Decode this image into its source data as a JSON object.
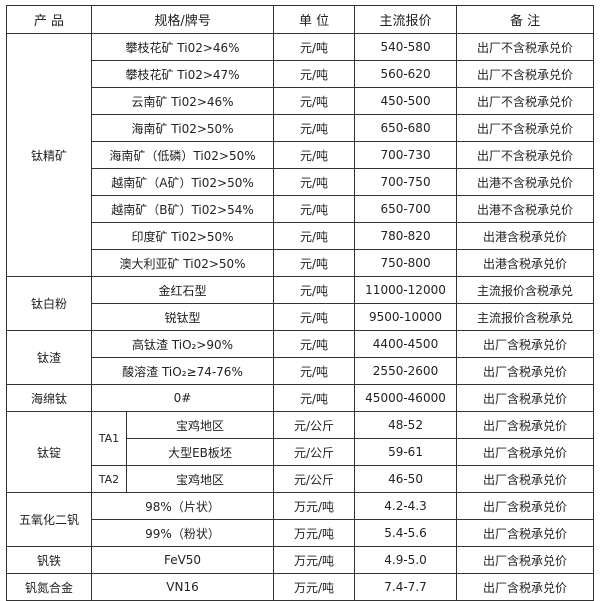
{
  "header": {
    "product": "产 品",
    "spec": "规格/牌号",
    "unit": "单 位",
    "price": "主流报价",
    "note": "备 注"
  },
  "titanium_concentrate": {
    "name": "钛精矿",
    "rows": [
      {
        "spec": "攀枝花矿 Ti02>46%",
        "unit": "元/吨",
        "price": "540-580",
        "note": "出厂不含税承兑价"
      },
      {
        "spec": "攀枝花矿 Ti02>47%",
        "unit": "元/吨",
        "price": "560-620",
        "note": "出厂不含税承兑价"
      },
      {
        "spec": "云南矿 Ti02>46%",
        "unit": "元/吨",
        "price": "450-500",
        "note": "出厂不含税承兑价"
      },
      {
        "spec": "海南矿 Ti02>50%",
        "unit": "元/吨",
        "price": "650-680",
        "note": "出厂不含税承兑价"
      },
      {
        "spec": "海南矿（低磷）Ti02>50%",
        "unit": "元/吨",
        "price": "700-730",
        "note": "出厂不含税承兑价"
      },
      {
        "spec": "越南矿（A矿）Ti02>50%",
        "unit": "元/吨",
        "price": "700-750",
        "note": "出港不含税承兑价"
      },
      {
        "spec": "越南矿（B矿）Ti02>54%",
        "unit": "元/吨",
        "price": "650-700",
        "note": "出港不含税承兑价"
      },
      {
        "spec": "印度矿 Ti02>50%",
        "unit": "元/吨",
        "price": "780-820",
        "note": "出港含税承兑价"
      },
      {
        "spec": "澳大利亚矿 Ti02>50%",
        "unit": "元/吨",
        "price": "750-800",
        "note": "出港含税承兑价"
      }
    ]
  },
  "titanium_dioxide": {
    "name": "钛白粉",
    "rows": [
      {
        "spec": "金红石型",
        "unit": "元/吨",
        "price": "11000-12000",
        "note": "主流报价含税承兑"
      },
      {
        "spec": "锐钛型",
        "unit": "元/吨",
        "price": "9500-10000",
        "note": "主流报价含税承兑"
      }
    ]
  },
  "titanium_slag": {
    "name": "钛渣",
    "rows": [
      {
        "spec": "高钛渣 TiO₂>90%",
        "unit": "元/吨",
        "price": "4400-4500",
        "note": "出厂含税承兑价"
      },
      {
        "spec": "酸溶渣 TiO₂≥74-76%",
        "unit": "元/吨",
        "price": "2550-2600",
        "note": "出厂含税承兑价"
      }
    ]
  },
  "sponge_titanium": {
    "name": "海绵钛",
    "rows": [
      {
        "spec": "0#",
        "unit": "元/吨",
        "price": "45000-46000",
        "note": "出厂含税承兑价"
      }
    ]
  },
  "titanium_ingot": {
    "name": "钛锭",
    "grade_ta1": "TA1",
    "grade_ta2": "TA2",
    "rows": [
      {
        "spec": "宝鸡地区",
        "unit": "元/公斤",
        "price": "48-52",
        "note": "出厂含税承兑价"
      },
      {
        "spec": "大型EB板坯",
        "unit": "元/公斤",
        "price": "59-61",
        "note": "出厂含税承兑价"
      },
      {
        "spec": "宝鸡地区",
        "unit": "元/公斤",
        "price": "46-50",
        "note": "出厂含税承兑价"
      }
    ]
  },
  "vanadium_pentoxide": {
    "name": "五氧化二钒",
    "rows": [
      {
        "spec": "98%（片状）",
        "unit": "万元/吨",
        "price": "4.2-4.3",
        "note": "出厂含税承兑价"
      },
      {
        "spec": "99%（粉状）",
        "unit": "万元/吨",
        "price": "5.4-5.6",
        "note": "出厂含税承兑价"
      }
    ]
  },
  "ferrovanadium": {
    "name": "钒铁",
    "rows": [
      {
        "spec": "FeV50",
        "unit": "万元/吨",
        "price": "4.9-5.0",
        "note": "出厂含税承兑价"
      }
    ]
  },
  "vanadium_nitrogen": {
    "name": "钒氮合金",
    "rows": [
      {
        "spec": "VN16",
        "unit": "万元/吨",
        "price": "7.4-7.7",
        "note": "出厂含税承兑价"
      }
    ]
  }
}
